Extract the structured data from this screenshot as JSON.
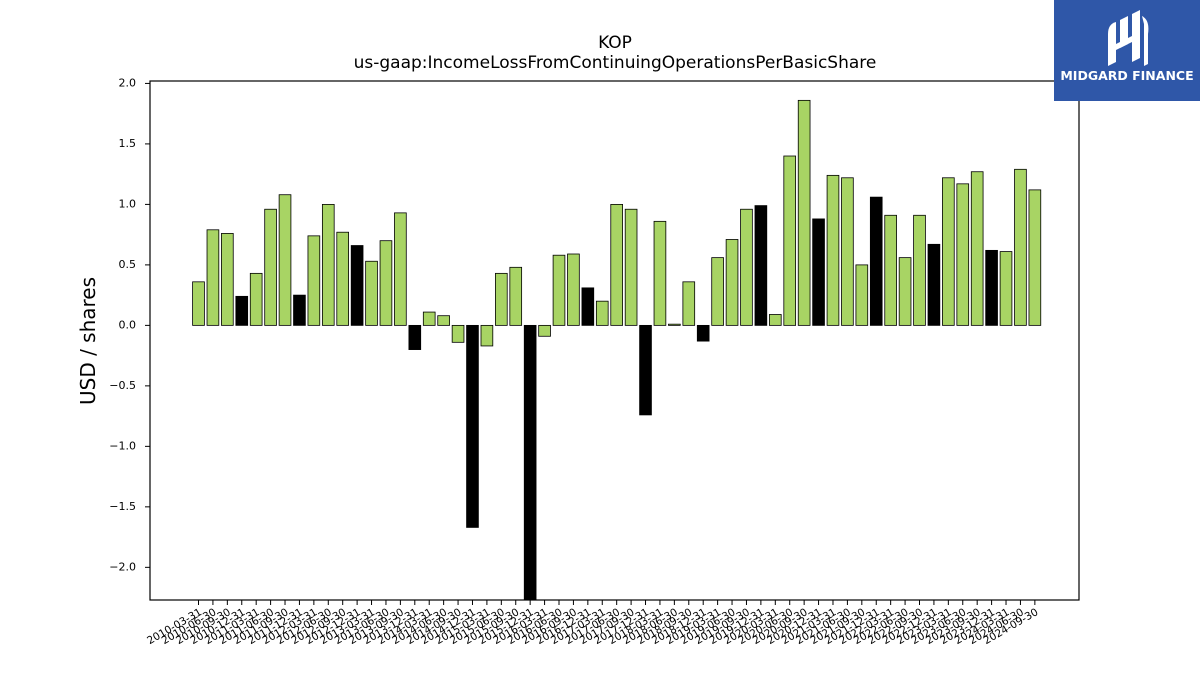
{
  "logo": {
    "text": "MIDGARD FINANCE",
    "background_color": "#2f57a8",
    "icon": "midgard-m-logo-icon"
  },
  "colors": {
    "positive_bar": "#a8d464",
    "highlight_bar": "#000000",
    "bar_edge": "#000000"
  },
  "chart_data": {
    "type": "bar",
    "title": "KOP",
    "subtitle": "us-gaap:IncomeLossFromContinuingOperationsPerBasicShare",
    "xlabel": "",
    "ylabel": "USD / shares",
    "ylim": [
      -2.27,
      2.02
    ],
    "yticks": [
      2.0,
      1.5,
      1.0,
      0.5,
      0.0,
      -0.5,
      -1.0,
      -1.5,
      -2.0
    ],
    "ytick_labels": [
      "2.0",
      "1.5",
      "1.0",
      "0.5",
      "0.0",
      "−0.5",
      "−1.0",
      "−1.5",
      "−2.0"
    ],
    "grid": false,
    "categories": [
      "2010-03-31",
      "2010-06-30",
      "2010-09-30",
      "2010-12-31",
      "2011-03-31",
      "2011-06-30",
      "2011-09-30",
      "2011-12-31",
      "2012-03-31",
      "2012-06-30",
      "2012-09-30",
      "2012-12-31",
      "2013-03-31",
      "2013-06-30",
      "2013-09-30",
      "2013-12-31",
      "2014-03-31",
      "2014-06-30",
      "2014-09-30",
      "2014-12-31",
      "2015-03-31",
      "2015-06-30",
      "2015-09-30",
      "2015-12-31",
      "2016-03-31",
      "2016-06-30",
      "2016-09-30",
      "2016-12-31",
      "2017-03-31",
      "2017-06-30",
      "2017-09-30",
      "2017-12-31",
      "2018-03-31",
      "2018-06-30",
      "2018-09-30",
      "2018-12-31",
      "2019-03-31",
      "2019-06-30",
      "2019-09-30",
      "2019-12-31",
      "2020-03-31",
      "2020-06-30",
      "2020-09-30",
      "2020-12-31",
      "2021-03-31",
      "2021-06-30",
      "2021-09-30",
      "2021-12-31",
      "2022-03-31",
      "2022-06-30",
      "2022-09-30",
      "2022-12-31",
      "2023-03-31",
      "2023-06-30",
      "2023-09-30",
      "2023-12-31",
      "2024-03-31",
      "2024-06-30",
      "2024-09-30"
    ],
    "values": [
      0.36,
      0.79,
      0.76,
      0.24,
      0.43,
      0.96,
      1.08,
      0.25,
      0.74,
      1.0,
      0.77,
      0.66,
      0.53,
      0.7,
      0.93,
      -0.2,
      0.11,
      0.08,
      -0.14,
      -1.67,
      -0.17,
      0.43,
      0.48,
      -2.27,
      -0.09,
      0.58,
      0.59,
      0.31,
      0.2,
      1.0,
      0.96,
      -0.74,
      0.86,
      0.01,
      0.36,
      -0.13,
      0.56,
      0.71,
      0.96,
      0.99,
      0.09,
      1.4,
      1.86,
      0.88,
      1.24,
      1.22,
      0.5,
      1.06,
      0.91,
      0.56,
      0.91,
      0.67,
      1.22,
      1.17,
      1.27,
      0.62,
      0.61,
      1.29,
      1.12
    ],
    "highlighted": [
      false,
      false,
      false,
      true,
      false,
      false,
      false,
      true,
      false,
      false,
      false,
      true,
      false,
      false,
      false,
      true,
      false,
      false,
      false,
      true,
      false,
      false,
      false,
      true,
      false,
      false,
      false,
      true,
      false,
      false,
      false,
      true,
      false,
      false,
      false,
      true,
      false,
      false,
      false,
      true,
      false,
      false,
      false,
      true,
      false,
      false,
      false,
      true,
      false,
      false,
      false,
      true,
      false,
      false,
      false,
      true,
      false,
      false,
      false
    ]
  }
}
